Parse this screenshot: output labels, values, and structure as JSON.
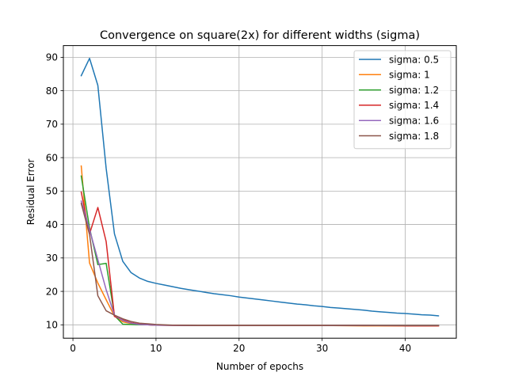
{
  "chart_data": {
    "type": "line",
    "title": "Convergence on square(2x) for different widths (sigma)",
    "xlabel": "Number of epochs",
    "ylabel": "Residual Error",
    "xlim": [
      -1.15,
      46.15
    ],
    "ylim": [
      6.0,
      93.5
    ],
    "xticks": [
      0,
      10,
      20,
      30,
      40
    ],
    "yticks": [
      10,
      20,
      30,
      40,
      50,
      60,
      70,
      80,
      90
    ],
    "grid": true,
    "legend_position": "top-right",
    "series": [
      {
        "name": "sigma: 0.5",
        "color": "#1f77b4",
        "x": [
          1,
          2,
          3,
          4,
          5,
          6,
          7,
          8,
          9,
          10,
          11,
          12,
          13,
          14,
          15,
          16,
          17,
          18,
          19,
          20,
          21,
          22,
          23,
          24,
          25,
          26,
          27,
          28,
          29,
          30,
          31,
          32,
          33,
          34,
          35,
          36,
          37,
          38,
          39,
          40,
          41,
          42,
          43,
          44
        ],
        "y": [
          84.5,
          89.7,
          81.6,
          56.8,
          37.2,
          29.0,
          25.6,
          24.0,
          23.0,
          22.4,
          21.9,
          21.4,
          20.9,
          20.5,
          20.1,
          19.7,
          19.3,
          19.0,
          18.7,
          18.3,
          18.0,
          17.7,
          17.4,
          17.1,
          16.8,
          16.5,
          16.2,
          16.0,
          15.7,
          15.5,
          15.2,
          15.0,
          14.8,
          14.6,
          14.4,
          14.1,
          13.9,
          13.7,
          13.5,
          13.4,
          13.2,
          13.0,
          12.9,
          12.7
        ]
      },
      {
        "name": "sigma: 1",
        "color": "#ff7f0e",
        "x": [
          1,
          2,
          3,
          4,
          5,
          6,
          7,
          8,
          9,
          10,
          12,
          15,
          20,
          25,
          30,
          35,
          40,
          44
        ],
        "y": [
          57.5,
          28.5,
          22.5,
          17.5,
          12.6,
          10.9,
          10.4,
          10.2,
          10.0,
          9.9,
          9.8,
          9.8,
          9.8,
          9.8,
          9.8,
          9.7,
          9.7,
          9.7
        ]
      },
      {
        "name": "sigma: 1.2",
        "color": "#2ca02c",
        "x": [
          1,
          2,
          3,
          4,
          5,
          6,
          7,
          8,
          9,
          10,
          12,
          15,
          20,
          25,
          30,
          35,
          40,
          44
        ],
        "y": [
          54.5,
          39.0,
          28.0,
          28.4,
          12.8,
          10.2,
          10.1,
          10.0,
          10.0,
          9.9,
          9.9,
          9.8,
          9.8,
          9.8,
          9.8,
          9.8,
          9.8,
          9.8
        ]
      },
      {
        "name": "sigma: 1.4",
        "color": "#d62728",
        "x": [
          1,
          2,
          3,
          4,
          5,
          6,
          7,
          8,
          9,
          10,
          12,
          15,
          20,
          25,
          30,
          35,
          40,
          44
        ],
        "y": [
          49.7,
          37.2,
          45.1,
          34.9,
          12.5,
          11.5,
          10.6,
          10.2,
          10.0,
          9.9,
          9.9,
          9.8,
          9.8,
          9.8,
          9.8,
          9.8,
          9.7,
          9.7
        ]
      },
      {
        "name": "sigma: 1.6",
        "color": "#9467bd",
        "x": [
          1,
          2,
          3,
          4,
          5,
          6,
          7,
          8,
          9,
          10,
          12,
          15,
          20,
          25,
          30,
          35,
          40,
          44
        ],
        "y": [
          47.0,
          38.5,
          29.5,
          20.5,
          12.9,
          11.3,
          10.5,
          10.1,
          10.0,
          9.9,
          9.8,
          9.8,
          9.8,
          9.8,
          9.8,
          9.8,
          9.8,
          9.8
        ]
      },
      {
        "name": "sigma: 1.8",
        "color": "#8c564b",
        "x": [
          1,
          2,
          3,
          4,
          5,
          6,
          7,
          8,
          9,
          10,
          12,
          15,
          20,
          25,
          30,
          35,
          40,
          44
        ],
        "y": [
          46.3,
          37.0,
          18.7,
          14.2,
          12.9,
          11.8,
          11.0,
          10.5,
          10.3,
          10.1,
          9.9,
          9.8,
          9.8,
          9.8,
          9.8,
          9.8,
          9.8,
          9.8
        ]
      }
    ]
  }
}
